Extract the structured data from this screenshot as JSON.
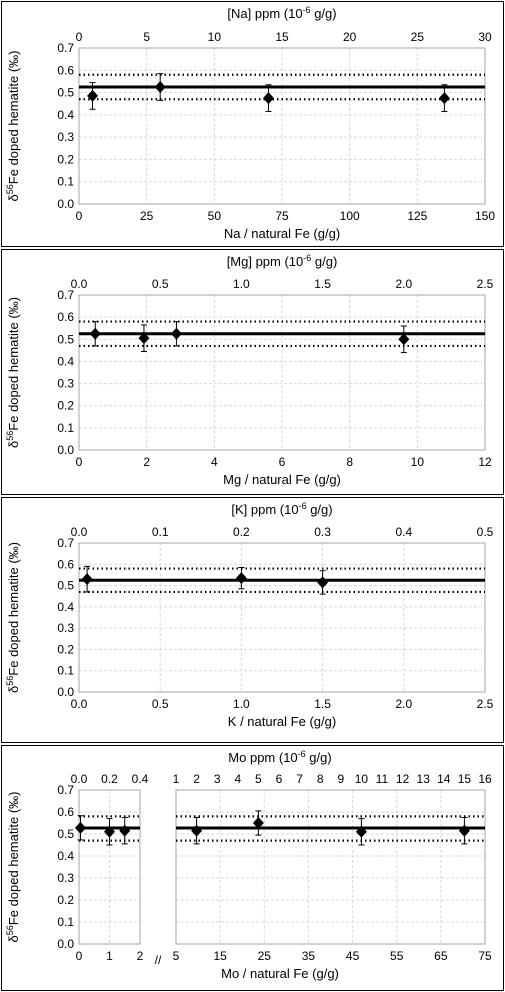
{
  "chart_data": [
    {
      "type": "scatter",
      "ylabel_prefix": "δ",
      "ylabel_sup": "56",
      "ylabel_rest": "Fe doped hematite (‰)",
      "xlabel": "Na / natural Fe (g/g)",
      "x2label_pre": "[Na] ppm (10",
      "x2label_sup": "-6",
      "x2label_post": " g/g)",
      "xlim": [
        0,
        150
      ],
      "xticks": [
        "0",
        "25",
        "50",
        "75",
        "100",
        "125",
        "150"
      ],
      "x2lim": [
        0,
        30
      ],
      "x2ticks": [
        "0",
        "5",
        "10",
        "15",
        "20",
        "25",
        "30"
      ],
      "ylim": [
        0,
        0.7
      ],
      "yticks": [
        "0.0",
        "0.1",
        "0.2",
        "0.3",
        "0.4",
        "0.5",
        "0.6",
        "0.7"
      ],
      "grid": true,
      "mean": 0.525,
      "band": [
        0.47,
        0.58
      ],
      "points": [
        {
          "x": 5,
          "y": 0.485,
          "err": 0.06
        },
        {
          "x": 30,
          "y": 0.525,
          "err": 0.06
        },
        {
          "x": 70,
          "y": 0.475,
          "err": 0.06
        },
        {
          "x": 135,
          "y": 0.475,
          "err": 0.06
        }
      ]
    },
    {
      "type": "scatter",
      "ylabel_prefix": "δ",
      "ylabel_sup": "56",
      "ylabel_rest": "Fe doped hematite (‰)",
      "xlabel": "Mg / natural Fe (g/g)",
      "x2label_pre": "[Mg] ppm (10",
      "x2label_sup": "-6",
      "x2label_post": " g/g)",
      "xlim": [
        0,
        12.5
      ],
      "xticks": [
        "0",
        "2",
        "4",
        "6",
        "8",
        "10",
        "12"
      ],
      "x2lim": [
        0,
        2.5
      ],
      "x2ticks": [
        "0.0",
        "0.5",
        "1.0",
        "1.5",
        "2.0",
        "2.5"
      ],
      "ylim": [
        0,
        0.7
      ],
      "yticks": [
        "0.0",
        "0.1",
        "0.2",
        "0.3",
        "0.4",
        "0.5",
        "0.6",
        "0.7"
      ],
      "grid": true,
      "mean": 0.525,
      "band": [
        0.47,
        0.58
      ],
      "points": [
        {
          "x": 0.5,
          "y": 0.525,
          "err": 0.055
        },
        {
          "x": 2,
          "y": 0.505,
          "err": 0.06
        },
        {
          "x": 3,
          "y": 0.525,
          "err": 0.055
        },
        {
          "x": 10,
          "y": 0.5,
          "err": 0.06
        }
      ]
    },
    {
      "type": "scatter",
      "ylabel_prefix": "δ",
      "ylabel_sup": "56",
      "ylabel_rest": "Fe doped hematite (‰)",
      "xlabel": "K / natural Fe (g/g)",
      "x2label_pre": "[K] ppm (10",
      "x2label_sup": "-6",
      "x2label_post": " g/g)",
      "xlim": [
        0,
        2.5
      ],
      "xticks": [
        "0.0",
        "0.5",
        "1.0",
        "1.5",
        "2.0",
        "2.5"
      ],
      "x2lim": [
        0,
        0.5
      ],
      "x2ticks": [
        "0.0",
        "0.1",
        "0.2",
        "0.3",
        "0.4",
        "0.5"
      ],
      "ylim": [
        0,
        0.7
      ],
      "yticks": [
        "0.0",
        "0.1",
        "0.2",
        "0.3",
        "0.4",
        "0.5",
        "0.6",
        "0.7"
      ],
      "grid": true,
      "mean": 0.525,
      "band": [
        0.47,
        0.58
      ],
      "points": [
        {
          "x": 0.05,
          "y": 0.53,
          "err": 0.06
        },
        {
          "x": 1.0,
          "y": 0.535,
          "err": 0.05
        },
        {
          "x": 1.5,
          "y": 0.515,
          "err": 0.055
        }
      ]
    },
    {
      "type": "scatter",
      "broken_axis": true,
      "ylabel_prefix": "δ",
      "ylabel_sup": "56",
      "ylabel_rest": "Fe doped hematite (‰)",
      "xlabel": "Mo / natural Fe (g/g)",
      "x2label_pre": "Mo ppm (10",
      "x2label_sup": "-6",
      "x2label_post": " g/g)",
      "break_mark": "//",
      "ylim": [
        0,
        0.7
      ],
      "yticks": [
        "0.0",
        "0.1",
        "0.2",
        "0.3",
        "0.4",
        "0.5",
        "0.6",
        "0.7"
      ],
      "grid": true,
      "mean": 0.527,
      "band": [
        0.47,
        0.58
      ],
      "left": {
        "xlim": [
          0,
          2
        ],
        "xticks": [
          "0",
          "1",
          "2"
        ],
        "x2lim": [
          0,
          0.4
        ],
        "x2ticks": [
          "0.0",
          "0.2",
          "0.4"
        ],
        "points": [
          {
            "x": 0.05,
            "y": 0.528,
            "err": 0.055
          },
          {
            "x": 1.0,
            "y": 0.51,
            "err": 0.06
          },
          {
            "x": 1.5,
            "y": 0.515,
            "err": 0.06
          }
        ]
      },
      "right": {
        "xlim": [
          5,
          80
        ],
        "xticks": [
          "5",
          "15",
          "25",
          "35",
          "45",
          "55",
          "65",
          "75"
        ],
        "x2lim": [
          1,
          16
        ],
        "x2ticks": [
          "1",
          "2",
          "3",
          "4",
          "5",
          "6",
          "7",
          "8",
          "9",
          "10",
          "11",
          "12",
          "13",
          "14",
          "15",
          "16"
        ],
        "points": [
          {
            "x": 10,
            "y": 0.515,
            "err": 0.06
          },
          {
            "x": 25,
            "y": 0.55,
            "err": 0.055
          },
          {
            "x": 50,
            "y": 0.51,
            "err": 0.06
          },
          {
            "x": 75,
            "y": 0.515,
            "err": 0.06
          }
        ]
      }
    }
  ]
}
